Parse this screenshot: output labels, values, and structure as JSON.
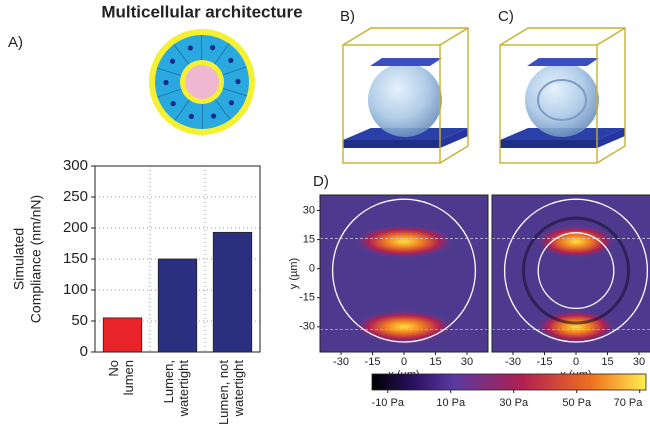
{
  "title": "Multicellular architecture",
  "panel_labels": [
    "A)",
    "B)",
    "C)",
    "D)"
  ],
  "chart_data": [
    {
      "type": "bar",
      "categories": [
        "No\nlumen",
        "Lumen,\nwatertight",
        "Lumen, not\nwatertight"
      ],
      "values": [
        55,
        150,
        193
      ],
      "colors": [
        "#e8242a",
        "#2b2f7f",
        "#2b2f7f"
      ],
      "ylabel": [
        "Simulated",
        "Compliance (nm/nN)"
      ],
      "ylim": [
        0,
        300
      ],
      "yticks": [
        0,
        50,
        100,
        150,
        200,
        250,
        300
      ],
      "grid": true
    },
    {
      "type": "heatmap",
      "xlabel": "x (µm)",
      "ylabel": "y (µm)",
      "xlim": [
        -40,
        40
      ],
      "ylim": [
        -43,
        38
      ],
      "xticks": [
        -30,
        -15,
        0,
        15,
        30
      ],
      "yticks": [
        -30,
        -15,
        0,
        15,
        30
      ]
    },
    {
      "type": "colorbar",
      "xlim": [
        -15,
        72
      ],
      "xticks": [
        {
          "value": -10,
          "label": "-10 Pa"
        },
        {
          "value": 10,
          "label": "10 Pa"
        },
        {
          "value": 30,
          "label": "30 Pa"
        },
        {
          "value": 50,
          "label": "50 Pa"
        },
        {
          "value": 70,
          "label": "70 Pa"
        }
      ]
    }
  ]
}
